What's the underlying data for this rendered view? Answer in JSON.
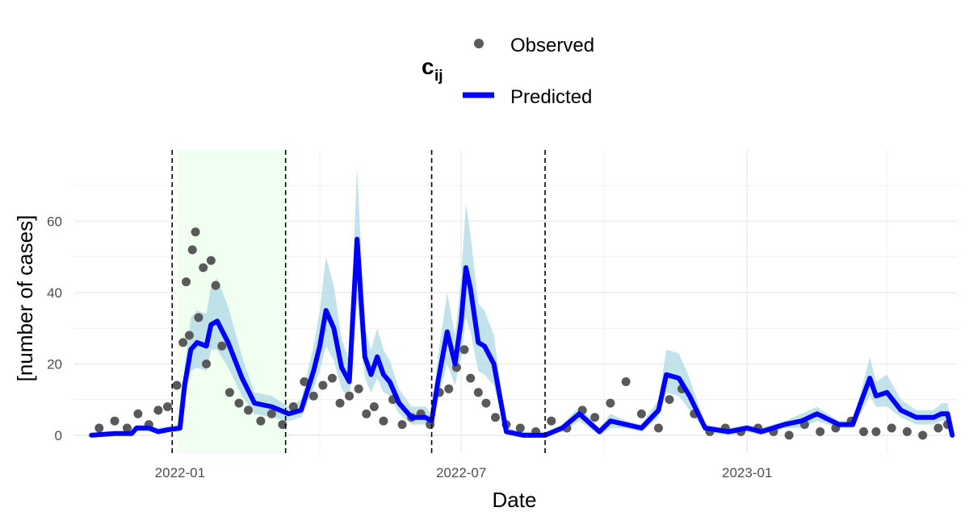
{
  "chart_data": {
    "type": "line",
    "xlabel": "Date",
    "ylabel": "[number of cases]",
    "xlim": [
      "2021-10-25",
      "2023-05-16"
    ],
    "ylim": [
      -5,
      80
    ],
    "x_ticks": [
      "2022-01-01",
      "2022-07-01",
      "2023-01-01"
    ],
    "x_tick_labels": [
      "2022-01",
      "2022-07",
      "2023-01"
    ],
    "y_ticks": [
      0,
      20,
      40,
      60
    ],
    "grid": true,
    "legend": {
      "title_main": "c",
      "title_sub": "ij",
      "placement": "top",
      "entries": [
        "Observed",
        "Predicted"
      ]
    },
    "colors": {
      "observed": "#595959",
      "predicted": "#0000ff",
      "ribbon": "#add8e6",
      "shaded_period": "#f0fff0",
      "grid": "#ebebeb"
    },
    "vlines": [
      "2021-12-27",
      "2022-03-10",
      "2022-06-12",
      "2022-08-24"
    ],
    "shaded_period": [
      "2021-12-30",
      "2022-03-10"
    ],
    "series": [
      {
        "name": "Predicted",
        "x": [
          "2021-11-05",
          "2021-11-20",
          "2021-12-01",
          "2021-12-04",
          "2021-12-12",
          "2021-12-18",
          "2021-12-24",
          "2022-01-01",
          "2022-01-04",
          "2022-01-08",
          "2022-01-12",
          "2022-01-18",
          "2022-01-21",
          "2022-01-25",
          "2022-02-01",
          "2022-02-10",
          "2022-02-18",
          "2022-03-01",
          "2022-03-12",
          "2022-03-20",
          "2022-03-28",
          "2022-04-01",
          "2022-04-05",
          "2022-04-10",
          "2022-04-15",
          "2022-04-20",
          "2022-04-25",
          "2022-04-30",
          "2022-05-04",
          "2022-05-08",
          "2022-05-12",
          "2022-05-16",
          "2022-05-22",
          "2022-05-30",
          "2022-06-08",
          "2022-06-12",
          "2022-06-16",
          "2022-06-22",
          "2022-06-27",
          "2022-07-01",
          "2022-07-04",
          "2022-07-07",
          "2022-07-12",
          "2022-07-16",
          "2022-07-22",
          "2022-07-30",
          "2022-08-10",
          "2022-08-24",
          "2022-09-04",
          "2022-09-15",
          "2022-09-28",
          "2022-10-05",
          "2022-10-15",
          "2022-10-25",
          "2022-11-05",
          "2022-11-10",
          "2022-11-18",
          "2022-11-25",
          "2022-12-05",
          "2022-12-20",
          "2023-01-01",
          "2023-01-10",
          "2023-01-25",
          "2023-02-05",
          "2023-02-15",
          "2023-03-01",
          "2023-03-10",
          "2023-03-15",
          "2023-03-21",
          "2023-03-25",
          "2023-04-01",
          "2023-04-10",
          "2023-04-20",
          "2023-05-01",
          "2023-05-06",
          "2023-05-10",
          "2023-05-13"
        ],
        "values": [
          0,
          0.5,
          0.5,
          2,
          2,
          1,
          1.5,
          2,
          14,
          24,
          26,
          25,
          31,
          32,
          26,
          16,
          9,
          8,
          6,
          7,
          18,
          25,
          35,
          30,
          19,
          15,
          55,
          22,
          17,
          22,
          17,
          15,
          9,
          5,
          5,
          4,
          15,
          29,
          20,
          32,
          47,
          41,
          26,
          25,
          20,
          1,
          0,
          0,
          2,
          6,
          1,
          4,
          3,
          2,
          7,
          17,
          16,
          11,
          2,
          1,
          2,
          1,
          3,
          4,
          6,
          3,
          3,
          9,
          16,
          11,
          12,
          7,
          5,
          5,
          6,
          6,
          0
        ]
      },
      {
        "name": "Observed",
        "x": [
          "2021-11-10",
          "2021-11-20",
          "2021-11-28",
          "2021-12-05",
          "2021-12-12",
          "2021-12-18",
          "2021-12-24",
          "2021-12-30",
          "2022-01-03",
          "2022-01-05",
          "2022-01-07",
          "2022-01-09",
          "2022-01-11",
          "2022-01-13",
          "2022-01-16",
          "2022-01-18",
          "2022-01-21",
          "2022-01-24",
          "2022-01-28",
          "2022-02-02",
          "2022-02-08",
          "2022-02-14",
          "2022-02-22",
          "2022-03-01",
          "2022-03-08",
          "2022-03-15",
          "2022-03-22",
          "2022-03-28",
          "2022-04-03",
          "2022-04-09",
          "2022-04-14",
          "2022-04-20",
          "2022-04-26",
          "2022-05-01",
          "2022-05-06",
          "2022-05-12",
          "2022-05-18",
          "2022-05-24",
          "2022-05-30",
          "2022-06-05",
          "2022-06-11",
          "2022-06-17",
          "2022-06-23",
          "2022-06-28",
          "2022-07-03",
          "2022-07-07",
          "2022-07-12",
          "2022-07-17",
          "2022-07-23",
          "2022-07-30",
          "2022-08-08",
          "2022-08-18",
          "2022-08-28",
          "2022-09-07",
          "2022-09-17",
          "2022-09-25",
          "2022-10-05",
          "2022-10-15",
          "2022-10-25",
          "2022-11-05",
          "2022-11-12",
          "2022-11-20",
          "2022-11-28",
          "2022-12-08",
          "2022-12-18",
          "2022-12-28",
          "2023-01-08",
          "2023-01-18",
          "2023-01-28",
          "2023-02-07",
          "2023-02-17",
          "2023-02-27",
          "2023-03-09",
          "2023-03-17",
          "2023-03-25",
          "2023-04-04",
          "2023-04-14",
          "2023-04-24",
          "2023-05-04",
          "2023-05-10"
        ],
        "values": [
          2,
          4,
          2,
          6,
          3,
          7,
          8,
          14,
          26,
          43,
          28,
          52,
          57,
          33,
          47,
          20,
          49,
          42,
          25,
          12,
          9,
          7,
          4,
          6,
          3,
          8,
          15,
          11,
          14,
          16,
          9,
          11,
          13,
          6,
          8,
          4,
          10,
          3,
          5,
          6,
          3,
          12,
          13,
          19,
          24,
          16,
          12,
          9,
          5,
          3,
          2,
          1,
          4,
          2,
          7,
          5,
          9,
          15,
          6,
          2,
          10,
          13,
          6,
          1,
          2,
          1,
          2,
          1,
          0,
          3,
          1,
          2,
          4,
          1,
          1,
          2,
          1,
          0,
          2,
          3
        ]
      }
    ],
    "ribbon": {
      "x": [
        "2021-11-05",
        "2021-11-20",
        "2021-12-01",
        "2021-12-04",
        "2021-12-12",
        "2021-12-18",
        "2021-12-24",
        "2022-01-01",
        "2022-01-04",
        "2022-01-08",
        "2022-01-12",
        "2022-01-18",
        "2022-01-21",
        "2022-01-25",
        "2022-02-01",
        "2022-02-10",
        "2022-02-18",
        "2022-03-01",
        "2022-03-12",
        "2022-03-20",
        "2022-03-28",
        "2022-04-01",
        "2022-04-05",
        "2022-04-10",
        "2022-04-15",
        "2022-04-20",
        "2022-04-25",
        "2022-04-30",
        "2022-05-04",
        "2022-05-08",
        "2022-05-12",
        "2022-05-16",
        "2022-05-22",
        "2022-05-30",
        "2022-06-08",
        "2022-06-12",
        "2022-06-16",
        "2022-06-22",
        "2022-06-27",
        "2022-07-01",
        "2022-07-04",
        "2022-07-07",
        "2022-07-12",
        "2022-07-16",
        "2022-07-22",
        "2022-07-30",
        "2022-08-10",
        "2022-08-24",
        "2022-09-04",
        "2022-09-15",
        "2022-09-28",
        "2022-10-05",
        "2022-10-15",
        "2022-10-25",
        "2022-11-05",
        "2022-11-10",
        "2022-11-18",
        "2022-11-25",
        "2022-12-05",
        "2022-12-20",
        "2023-01-01",
        "2023-01-10",
        "2023-01-25",
        "2023-02-05",
        "2023-02-15",
        "2023-03-01",
        "2023-03-10",
        "2023-03-15",
        "2023-03-21",
        "2023-03-25",
        "2023-04-01",
        "2023-04-10",
        "2023-04-20",
        "2023-05-01",
        "2023-05-06",
        "2023-05-10",
        "2023-05-13"
      ],
      "lower": [
        0,
        0,
        0,
        1,
        1,
        0.5,
        1,
        1,
        10,
        18,
        19,
        18,
        24,
        24,
        19,
        11,
        6,
        5,
        4,
        5,
        13,
        18,
        25,
        21,
        13,
        10,
        38,
        16,
        12,
        16,
        12,
        11,
        6,
        3,
        3,
        3,
        10,
        20,
        14,
        22,
        33,
        29,
        18,
        17,
        14,
        0,
        0,
        0,
        1,
        4,
        0,
        2,
        2,
        1,
        5,
        12,
        11,
        7,
        1,
        0,
        1,
        0,
        2,
        2,
        4,
        2,
        2,
        6,
        11,
        8,
        8,
        5,
        3,
        3,
        4,
        4,
        0
      ],
      "upper": [
        0.5,
        1,
        1,
        3,
        3,
        2,
        2.5,
        3,
        19,
        33,
        35,
        34,
        42,
        44,
        36,
        22,
        12,
        11,
        8,
        10,
        25,
        35,
        50,
        42,
        27,
        21,
        75,
        30,
        24,
        30,
        24,
        21,
        13,
        8,
        8,
        6,
        22,
        40,
        28,
        44,
        65,
        56,
        37,
        35,
        28,
        2,
        1,
        1,
        3,
        8,
        2,
        6,
        4,
        3,
        10,
        24,
        23,
        16,
        3,
        2,
        3,
        2,
        4,
        6,
        8,
        4,
        4,
        12,
        22,
        15,
        17,
        10,
        7,
        7,
        9,
        9,
        1
      ]
    }
  }
}
